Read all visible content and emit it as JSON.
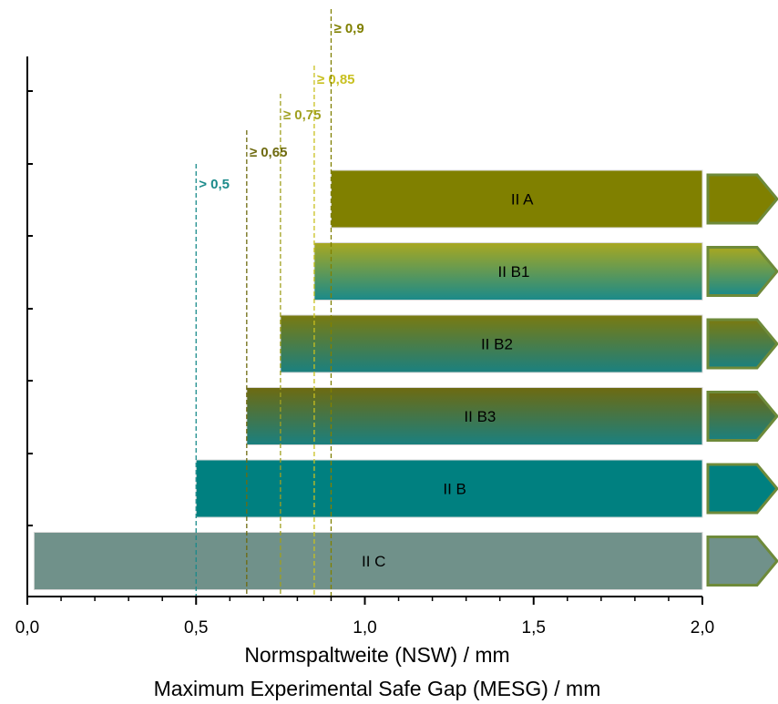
{
  "chart_data": {
    "type": "bar",
    "orientation": "horizontal",
    "xlabel": "Normspaltweite (NSW) /  mm",
    "xlabel2": "Maximum Experimental Safe Gap (MESG)   / mm",
    "xlim": [
      0.0,
      2.0
    ],
    "x_ticks": [
      "0,0",
      "0,5",
      "1,0",
      "1,5",
      "2,0"
    ],
    "x_tick_values": [
      0.0,
      0.5,
      1.0,
      1.5,
      2.0
    ],
    "bars": [
      {
        "label": "II A",
        "start": 0.9,
        "end": 2.0,
        "style": "solid",
        "color": "#808000"
      },
      {
        "label": "II B1",
        "start": 0.85,
        "end": 2.0,
        "style": "gradient",
        "color_top": "#a8a820",
        "color_bottom": "#1a8a8a"
      },
      {
        "label": "II B2",
        "start": 0.75,
        "end": 2.0,
        "style": "gradient",
        "color_top": "#7a7a10",
        "color_bottom": "#1a8080"
      },
      {
        "label": "II B3",
        "start": 0.65,
        "end": 2.0,
        "style": "gradient",
        "color_top": "#6e6a10",
        "color_bottom": "#1a8080"
      },
      {
        "label": "II B",
        "start": 0.5,
        "end": 2.0,
        "style": "solid",
        "color": "#008080"
      },
      {
        "label": "II C",
        "start": 0.02,
        "end": 2.0,
        "style": "solid",
        "color": "#70918a"
      }
    ],
    "thresholds": [
      {
        "value": 0.5,
        "label": "> 0,5",
        "color": "#1a8a8a"
      },
      {
        "value": 0.65,
        "label": "≥ 0,65",
        "color": "#6e6a10"
      },
      {
        "value": 0.75,
        "label": "≥ 0,75",
        "color": "#a0a020"
      },
      {
        "value": 0.85,
        "label": "≥ 0,85",
        "color": "#c8c020"
      },
      {
        "value": 0.9,
        "label": "≥ 0,9",
        "color": "#808000"
      }
    ],
    "arrow_border_color": "#6e8a3a"
  }
}
